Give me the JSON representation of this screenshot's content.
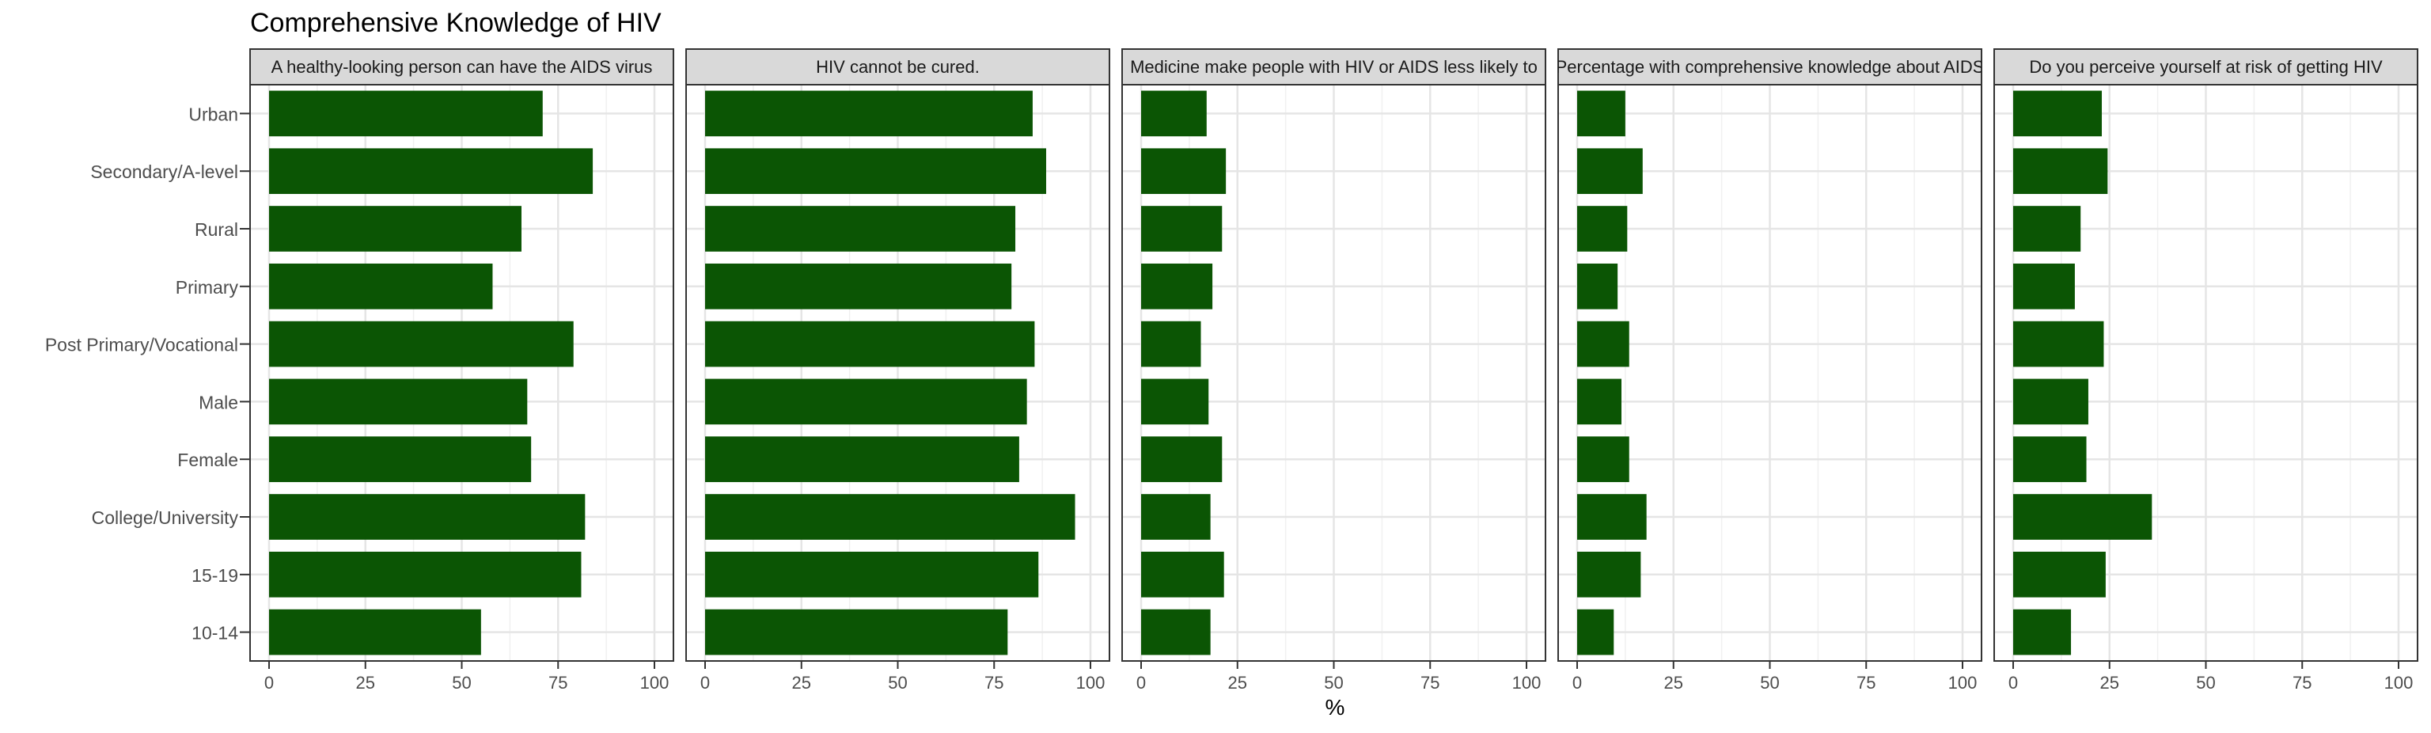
{
  "chart_data": {
    "type": "bar",
    "orientation": "horizontal",
    "title": "Comprehensive Knowledge of HIV",
    "xlabel": "%",
    "ylabel": "",
    "xlim": [
      0,
      100
    ],
    "xticks": [
      "0",
      "25",
      "50",
      "75",
      "100"
    ],
    "bar_color": "#0b5504",
    "grid": true,
    "categories": [
      "Urban",
      "Secondary/A-level",
      "Rural",
      "Primary",
      "Post Primary/Vocational",
      "Male",
      "Female",
      "College/University",
      "15-19",
      "10-14"
    ],
    "panels": [
      {
        "title": "A healthy-looking person can have the AIDS virus",
        "values": [
          71,
          84,
          65.5,
          58,
          79,
          67,
          68,
          82,
          81,
          55
        ]
      },
      {
        "title": "HIV cannot be cured.",
        "values": [
          85,
          88.5,
          80.5,
          79.5,
          85.5,
          83.5,
          81.5,
          96,
          86.5,
          78.5
        ]
      },
      {
        "title": "Medicine make people with HIV or AIDS less likely to",
        "values": [
          17,
          22,
          21,
          18.5,
          15.5,
          17.5,
          21,
          18,
          21.5,
          18
        ]
      },
      {
        "title": "Percentage with comprehensive knowledge about AIDS",
        "values": [
          12.5,
          17,
          13,
          10.5,
          13.5,
          11.5,
          13.5,
          18,
          16.5,
          9.5
        ]
      },
      {
        "title": "Do you perceive yourself at risk of getting HIV",
        "values": [
          23,
          24.5,
          17.5,
          16,
          23.5,
          19.5,
          19,
          36,
          24,
          15
        ]
      }
    ]
  }
}
